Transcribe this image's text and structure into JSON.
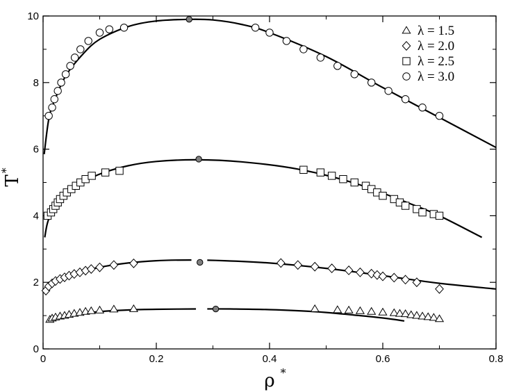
{
  "chart_data": {
    "type": "scatter",
    "xlabel": "ρ",
    "xlabel_sup": "*",
    "ylabel": "T",
    "ylabel_sup": "*",
    "xlim": [
      0,
      0.8
    ],
    "ylim": [
      0,
      10
    ],
    "x_ticks": [
      0,
      0.2,
      0.4,
      0.6,
      0.8
    ],
    "x_tick_labels": [
      "0",
      "0.2",
      "0.4",
      "0.6",
      "0.8"
    ],
    "y_ticks": [
      0,
      2,
      4,
      6,
      8,
      10
    ],
    "y_tick_labels": [
      "0",
      "2",
      "4",
      "6",
      "8",
      "10"
    ],
    "grid": false,
    "legend_position": "top-right",
    "series": [
      {
        "name": "λ  = 1.5",
        "marker": "triangle",
        "points": [
          [
            0.012,
            0.88
          ],
          [
            0.016,
            0.92
          ],
          [
            0.022,
            0.95
          ],
          [
            0.03,
            0.98
          ],
          [
            0.038,
            1.0
          ],
          [
            0.046,
            1.03
          ],
          [
            0.055,
            1.06
          ],
          [
            0.065,
            1.09
          ],
          [
            0.075,
            1.12
          ],
          [
            0.085,
            1.14
          ],
          [
            0.1,
            1.16
          ],
          [
            0.125,
            1.19
          ],
          [
            0.16,
            1.2
          ],
          [
            0.48,
            1.2
          ],
          [
            0.52,
            1.17
          ],
          [
            0.54,
            1.16
          ],
          [
            0.56,
            1.14
          ],
          [
            0.58,
            1.12
          ],
          [
            0.6,
            1.1
          ],
          [
            0.62,
            1.08
          ],
          [
            0.63,
            1.06
          ],
          [
            0.64,
            1.05
          ],
          [
            0.65,
            1.02
          ],
          [
            0.66,
            1.0
          ],
          [
            0.67,
            0.98
          ],
          [
            0.68,
            0.96
          ],
          [
            0.69,
            0.94
          ],
          [
            0.7,
            0.9
          ]
        ],
        "critical": [
          0.305,
          1.2
        ],
        "curve": [
          [
            0.008,
            0.85
          ],
          [
            0.05,
            1.02
          ],
          [
            0.1,
            1.12
          ],
          [
            0.15,
            1.17
          ],
          [
            0.2,
            1.19
          ],
          [
            0.27,
            1.2
          ],
          [
            0.33,
            1.2
          ],
          [
            0.4,
            1.18
          ],
          [
            0.48,
            1.12
          ],
          [
            0.56,
            1.0
          ],
          [
            0.6,
            0.93
          ],
          [
            0.638,
            0.84
          ]
        ],
        "curve_gap": [
          0.27,
          0.29
        ]
      },
      {
        "name": "λ  = 2.0",
        "marker": "diamond",
        "points": [
          [
            0.005,
            1.75
          ],
          [
            0.01,
            1.88
          ],
          [
            0.016,
            1.97
          ],
          [
            0.022,
            2.04
          ],
          [
            0.03,
            2.1
          ],
          [
            0.038,
            2.15
          ],
          [
            0.046,
            2.2
          ],
          [
            0.055,
            2.25
          ],
          [
            0.065,
            2.3
          ],
          [
            0.075,
            2.35
          ],
          [
            0.085,
            2.4
          ],
          [
            0.1,
            2.45
          ],
          [
            0.125,
            2.52
          ],
          [
            0.16,
            2.57
          ],
          [
            0.42,
            2.58
          ],
          [
            0.45,
            2.52
          ],
          [
            0.48,
            2.47
          ],
          [
            0.51,
            2.42
          ],
          [
            0.54,
            2.36
          ],
          [
            0.56,
            2.3
          ],
          [
            0.58,
            2.26
          ],
          [
            0.59,
            2.22
          ],
          [
            0.6,
            2.18
          ],
          [
            0.62,
            2.14
          ],
          [
            0.64,
            2.08
          ],
          [
            0.66,
            2.0
          ],
          [
            0.7,
            1.8
          ]
        ],
        "critical": [
          0.277,
          2.6
        ],
        "curve": [
          [
            0.005,
            1.8
          ],
          [
            0.05,
            2.22
          ],
          [
            0.1,
            2.45
          ],
          [
            0.15,
            2.58
          ],
          [
            0.2,
            2.65
          ],
          [
            0.26,
            2.67
          ],
          [
            0.32,
            2.65
          ],
          [
            0.4,
            2.58
          ],
          [
            0.5,
            2.42
          ],
          [
            0.6,
            2.2
          ],
          [
            0.7,
            1.97
          ],
          [
            0.8,
            1.8
          ]
        ],
        "curve_gap": [
          0.262,
          0.29
        ]
      },
      {
        "name": "λ  = 2.5",
        "marker": "square",
        "points": [
          [
            0.008,
            4.0
          ],
          [
            0.014,
            4.1
          ],
          [
            0.018,
            4.2
          ],
          [
            0.022,
            4.3
          ],
          [
            0.026,
            4.4
          ],
          [
            0.03,
            4.5
          ],
          [
            0.036,
            4.6
          ],
          [
            0.042,
            4.7
          ],
          [
            0.05,
            4.8
          ],
          [
            0.058,
            4.9
          ],
          [
            0.066,
            5.0
          ],
          [
            0.075,
            5.1
          ],
          [
            0.086,
            5.2
          ],
          [
            0.11,
            5.3
          ],
          [
            0.135,
            5.35
          ],
          [
            0.46,
            5.38
          ],
          [
            0.49,
            5.3
          ],
          [
            0.51,
            5.2
          ],
          [
            0.53,
            5.1
          ],
          [
            0.55,
            5.0
          ],
          [
            0.57,
            4.9
          ],
          [
            0.58,
            4.8
          ],
          [
            0.59,
            4.7
          ],
          [
            0.6,
            4.6
          ],
          [
            0.62,
            4.5
          ],
          [
            0.63,
            4.4
          ],
          [
            0.64,
            4.3
          ],
          [
            0.66,
            4.2
          ],
          [
            0.67,
            4.1
          ],
          [
            0.69,
            4.05
          ],
          [
            0.7,
            4.0
          ]
        ],
        "critical": [
          0.275,
          5.7
        ],
        "curve": [
          [
            0.003,
            3.35
          ],
          [
            0.01,
            3.9
          ],
          [
            0.03,
            4.45
          ],
          [
            0.06,
            4.9
          ],
          [
            0.1,
            5.25
          ],
          [
            0.15,
            5.5
          ],
          [
            0.2,
            5.63
          ],
          [
            0.27,
            5.68
          ],
          [
            0.35,
            5.62
          ],
          [
            0.45,
            5.4
          ],
          [
            0.55,
            4.98
          ],
          [
            0.65,
            4.35
          ],
          [
            0.7,
            4.0
          ],
          [
            0.775,
            3.35
          ]
        ]
      },
      {
        "name": "λ  = 3.0",
        "marker": "circle",
        "points": [
          [
            0.01,
            7.0
          ],
          [
            0.016,
            7.25
          ],
          [
            0.02,
            7.5
          ],
          [
            0.026,
            7.75
          ],
          [
            0.032,
            8.0
          ],
          [
            0.04,
            8.25
          ],
          [
            0.048,
            8.5
          ],
          [
            0.056,
            8.75
          ],
          [
            0.066,
            9.0
          ],
          [
            0.08,
            9.25
          ],
          [
            0.1,
            9.5
          ],
          [
            0.117,
            9.6
          ],
          [
            0.143,
            9.65
          ],
          [
            0.375,
            9.65
          ],
          [
            0.4,
            9.5
          ],
          [
            0.43,
            9.25
          ],
          [
            0.46,
            9.0
          ],
          [
            0.49,
            8.75
          ],
          [
            0.52,
            8.5
          ],
          [
            0.55,
            8.25
          ],
          [
            0.58,
            8.0
          ],
          [
            0.61,
            7.75
          ],
          [
            0.64,
            7.5
          ],
          [
            0.67,
            7.25
          ],
          [
            0.7,
            7.0
          ]
        ],
        "critical": [
          0.258,
          9.9
        ],
        "curve": [
          [
            0.002,
            5.85
          ],
          [
            0.01,
            6.9
          ],
          [
            0.02,
            7.45
          ],
          [
            0.04,
            8.2
          ],
          [
            0.07,
            8.85
          ],
          [
            0.1,
            9.3
          ],
          [
            0.15,
            9.68
          ],
          [
            0.2,
            9.85
          ],
          [
            0.26,
            9.9
          ],
          [
            0.3,
            9.88
          ],
          [
            0.35,
            9.75
          ],
          [
            0.4,
            9.5
          ],
          [
            0.5,
            8.78
          ],
          [
            0.6,
            7.85
          ],
          [
            0.7,
            6.95
          ],
          [
            0.8,
            6.05
          ]
        ]
      }
    ]
  }
}
